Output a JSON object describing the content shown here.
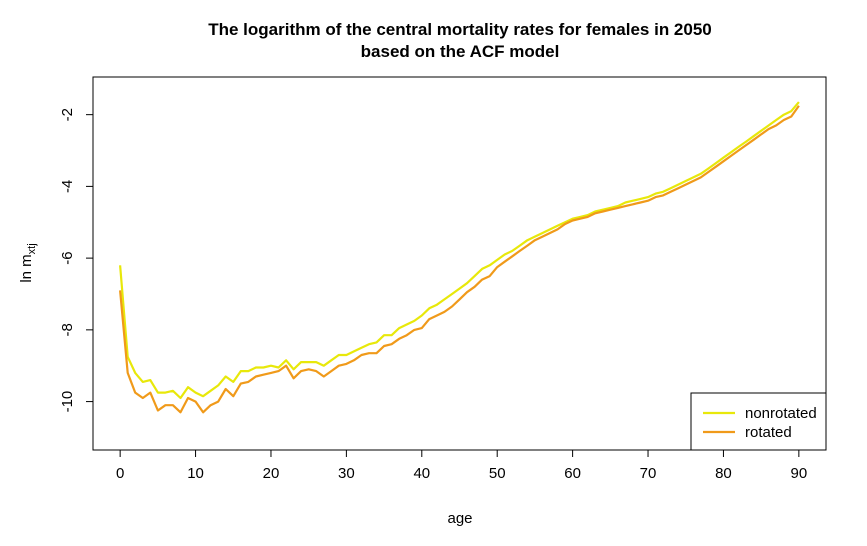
{
  "chart_data": {
    "type": "line",
    "title": "The logarithm of the central mortality rates for females in 2050",
    "subtitle": "based on the ACF model",
    "xlabel": "age",
    "ylabel_main": "ln m",
    "ylabel_sub": "xtj",
    "xlim": [
      -3.6,
      93.6
    ],
    "ylim": [
      -11.35,
      -0.95
    ],
    "xticks": [
      0,
      10,
      20,
      30,
      40,
      50,
      60,
      70,
      80,
      90
    ],
    "yticks": [
      -2,
      -4,
      -6,
      -8,
      -10
    ],
    "legend_position": "bottom-right",
    "x": [
      0,
      1,
      2,
      3,
      4,
      5,
      6,
      7,
      8,
      9,
      10,
      11,
      12,
      13,
      14,
      15,
      16,
      17,
      18,
      19,
      20,
      21,
      22,
      23,
      24,
      25,
      26,
      27,
      28,
      29,
      30,
      31,
      32,
      33,
      34,
      35,
      36,
      37,
      38,
      39,
      40,
      41,
      42,
      43,
      44,
      45,
      46,
      47,
      48,
      49,
      50,
      51,
      52,
      53,
      54,
      55,
      56,
      57,
      58,
      59,
      60,
      61,
      62,
      63,
      64,
      65,
      66,
      67,
      68,
      69,
      70,
      71,
      72,
      73,
      74,
      75,
      76,
      77,
      78,
      79,
      80,
      81,
      82,
      83,
      84,
      85,
      86,
      87,
      88,
      89,
      90
    ],
    "series": [
      {
        "name": "nonrotated",
        "color": "#e8e80a",
        "values": [
          -6.2,
          -8.75,
          -9.2,
          -9.45,
          -9.4,
          -9.75,
          -9.75,
          -9.7,
          -9.9,
          -9.6,
          -9.75,
          -9.85,
          -9.7,
          -9.55,
          -9.3,
          -9.45,
          -9.15,
          -9.15,
          -9.05,
          -9.05,
          -9.0,
          -9.05,
          -8.85,
          -9.1,
          -8.9,
          -8.9,
          -8.9,
          -9.0,
          -8.85,
          -8.7,
          -8.7,
          -8.6,
          -8.5,
          -8.4,
          -8.35,
          -8.15,
          -8.15,
          -7.95,
          -7.85,
          -7.75,
          -7.6,
          -7.4,
          -7.3,
          -7.15,
          -7.0,
          -6.85,
          -6.7,
          -6.5,
          -6.3,
          -6.2,
          -6.05,
          -5.9,
          -5.8,
          -5.65,
          -5.5,
          -5.4,
          -5.3,
          -5.2,
          -5.1,
          -5.0,
          -4.9,
          -4.85,
          -4.8,
          -4.7,
          -4.65,
          -4.6,
          -4.55,
          -4.45,
          -4.4,
          -4.35,
          -4.3,
          -4.2,
          -4.15,
          -4.05,
          -3.95,
          -3.85,
          -3.75,
          -3.65,
          -3.5,
          -3.35,
          -3.2,
          -3.05,
          -2.9,
          -2.75,
          -2.6,
          -2.45,
          -2.3,
          -2.15,
          -2.0,
          -1.9,
          -1.65
        ]
      },
      {
        "name": "rotated",
        "color": "#f09a1a",
        "values": [
          -6.9,
          -9.2,
          -9.75,
          -9.9,
          -9.75,
          -10.25,
          -10.1,
          -10.1,
          -10.3,
          -9.9,
          -10.0,
          -10.3,
          -10.1,
          -10.0,
          -9.65,
          -9.85,
          -9.5,
          -9.45,
          -9.3,
          -9.25,
          -9.2,
          -9.15,
          -9.0,
          -9.35,
          -9.15,
          -9.1,
          -9.15,
          -9.3,
          -9.15,
          -9.0,
          -8.95,
          -8.85,
          -8.7,
          -8.65,
          -8.65,
          -8.45,
          -8.4,
          -8.25,
          -8.15,
          -8.0,
          -7.95,
          -7.7,
          -7.6,
          -7.5,
          -7.35,
          -7.15,
          -6.95,
          -6.8,
          -6.6,
          -6.5,
          -6.25,
          -6.1,
          -5.95,
          -5.8,
          -5.65,
          -5.5,
          -5.4,
          -5.3,
          -5.2,
          -5.05,
          -4.95,
          -4.9,
          -4.85,
          -4.75,
          -4.7,
          -4.65,
          -4.6,
          -4.55,
          -4.5,
          -4.45,
          -4.4,
          -4.3,
          -4.25,
          -4.15,
          -4.05,
          -3.95,
          -3.85,
          -3.75,
          -3.6,
          -3.45,
          -3.3,
          -3.15,
          -3.0,
          -2.85,
          -2.7,
          -2.55,
          -2.4,
          -2.3,
          -2.15,
          -2.05,
          -1.75
        ]
      }
    ]
  }
}
